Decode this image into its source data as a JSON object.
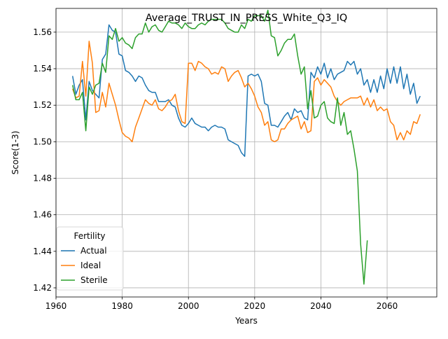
{
  "chart_data": {
    "type": "line",
    "title": "Average_TRUST_IN_PRESS_White_Q3_IQ",
    "xlabel": "Years",
    "ylabel": "Score(1-3)",
    "xlim": [
      1960,
      2075
    ],
    "ylim": [
      1.415,
      1.573
    ],
    "xticks": [
      1960,
      1980,
      2000,
      2020,
      2040,
      2060
    ],
    "yticks": [
      1.42,
      1.44,
      1.46,
      1.48,
      1.5,
      1.52,
      1.54,
      1.56
    ],
    "grid": true,
    "legend": {
      "title": "Fertility",
      "placement": "lower-left"
    },
    "series": [
      {
        "name": "Actual",
        "color": "#1f77b4",
        "x": [
          1965,
          1966,
          1967,
          1968,
          1969,
          1970,
          1971,
          1972,
          1973,
          1974,
          1975,
          1976,
          1977,
          1978,
          1979,
          1980,
          1981,
          1982,
          1983,
          1984,
          1985,
          1986,
          1987,
          1988,
          1989,
          1990,
          1991,
          1992,
          1993,
          1994,
          1995,
          1996,
          1997,
          1998,
          1999,
          2000,
          2001,
          2002,
          2003,
          2004,
          2005,
          2006,
          2007,
          2008,
          2009,
          2010,
          2011,
          2012,
          2013,
          2014,
          2015,
          2016,
          2017,
          2018,
          2019,
          2020,
          2021,
          2022,
          2023,
          2024,
          2025,
          2026,
          2027,
          2028,
          2029,
          2030,
          2031,
          2032,
          2033,
          2034,
          2035,
          2036,
          2037,
          2038,
          2039,
          2040,
          2041,
          2042,
          2043,
          2044,
          2045,
          2046,
          2047,
          2048,
          2049,
          2050,
          2051,
          2052,
          2053,
          2054,
          2055,
          2056,
          2057,
          2058,
          2059,
          2060,
          2061,
          2062,
          2063,
          2064,
          2065,
          2066,
          2067,
          2068,
          2069,
          2070
        ],
        "values": [
          1.536,
          1.526,
          1.531,
          1.534,
          1.512,
          1.533,
          1.528,
          1.526,
          1.524,
          1.545,
          1.548,
          1.564,
          1.561,
          1.56,
          1.548,
          1.547,
          1.539,
          1.538,
          1.536,
          1.533,
          1.536,
          1.535,
          1.531,
          1.528,
          1.527,
          1.527,
          1.522,
          1.522,
          1.522,
          1.523,
          1.52,
          1.519,
          1.513,
          1.509,
          1.508,
          1.51,
          1.513,
          1.51,
          1.509,
          1.508,
          1.508,
          1.506,
          1.508,
          1.509,
          1.508,
          1.508,
          1.507,
          1.501,
          1.5,
          1.499,
          1.498,
          1.494,
          1.492,
          1.536,
          1.537,
          1.536,
          1.537,
          1.533,
          1.521,
          1.52,
          1.509,
          1.509,
          1.508,
          1.511,
          1.514,
          1.516,
          1.512,
          1.518,
          1.516,
          1.517,
          1.513,
          1.512,
          1.538,
          1.535,
          1.541,
          1.537,
          1.543,
          1.535,
          1.54,
          1.534,
          1.537,
          1.538,
          1.539,
          1.544,
          1.542,
          1.544,
          1.537,
          1.54,
          1.531,
          1.534,
          1.527,
          1.534,
          1.527,
          1.536,
          1.529,
          1.54,
          1.532,
          1.541,
          1.532,
          1.541,
          1.529,
          1.537,
          1.526,
          1.532,
          1.521,
          1.525
        ]
      },
      {
        "name": "Ideal",
        "color": "#ff7f0e",
        "x": [
          1965,
          1966,
          1967,
          1968,
          1969,
          1970,
          1971,
          1972,
          1973,
          1974,
          1975,
          1976,
          1977,
          1978,
          1979,
          1980,
          1981,
          1982,
          1983,
          1984,
          1985,
          1986,
          1987,
          1988,
          1989,
          1990,
          1991,
          1992,
          1993,
          1994,
          1995,
          1996,
          1997,
          1998,
          1999,
          2000,
          2001,
          2002,
          2003,
          2004,
          2005,
          2006,
          2007,
          2008,
          2009,
          2010,
          2011,
          2012,
          2013,
          2014,
          2015,
          2016,
          2017,
          2018,
          2019,
          2020,
          2021,
          2022,
          2023,
          2024,
          2025,
          2026,
          2027,
          2028,
          2029,
          2030,
          2031,
          2032,
          2033,
          2034,
          2035,
          2036,
          2037,
          2038,
          2039,
          2040,
          2041,
          2042,
          2043,
          2044,
          2045,
          2046,
          2047,
          2048,
          2049,
          2050,
          2051,
          2052,
          2053,
          2054,
          2055,
          2056,
          2057,
          2058,
          2059,
          2060,
          2061,
          2062,
          2063,
          2064,
          2065,
          2066,
          2067,
          2068,
          2069,
          2070
        ],
        "values": [
          1.529,
          1.524,
          1.525,
          1.544,
          1.525,
          1.555,
          1.543,
          1.516,
          1.517,
          1.527,
          1.519,
          1.532,
          1.526,
          1.52,
          1.512,
          1.505,
          1.503,
          1.502,
          1.5,
          1.508,
          1.513,
          1.518,
          1.523,
          1.521,
          1.52,
          1.523,
          1.518,
          1.517,
          1.519,
          1.522,
          1.523,
          1.526,
          1.517,
          1.511,
          1.51,
          1.543,
          1.543,
          1.539,
          1.544,
          1.543,
          1.541,
          1.54,
          1.537,
          1.538,
          1.537,
          1.541,
          1.54,
          1.533,
          1.536,
          1.538,
          1.539,
          1.535,
          1.53,
          1.532,
          1.529,
          1.525,
          1.519,
          1.516,
          1.509,
          1.511,
          1.501,
          1.5,
          1.501,
          1.507,
          1.507,
          1.51,
          1.512,
          1.513,
          1.514,
          1.507,
          1.511,
          1.505,
          1.506,
          1.533,
          1.535,
          1.531,
          1.534,
          1.532,
          1.53,
          1.525,
          1.522,
          1.52,
          1.522,
          1.523,
          1.524,
          1.524,
          1.524,
          1.525,
          1.52,
          1.524,
          1.519,
          1.523,
          1.517,
          1.519,
          1.517,
          1.518,
          1.511,
          1.509,
          1.501,
          1.505,
          1.501,
          1.506,
          1.504,
          1.511,
          1.51,
          1.515
        ]
      },
      {
        "name": "Sterile",
        "color": "#2ca02c",
        "x": [
          1965,
          1966,
          1967,
          1968,
          1969,
          1970,
          1971,
          1972,
          1973,
          1974,
          1975,
          1976,
          1977,
          1978,
          1979,
          1980,
          1981,
          1982,
          1983,
          1984,
          1985,
          1986,
          1987,
          1988,
          1989,
          1990,
          1991,
          1992,
          1993,
          1994,
          1995,
          1996,
          1997,
          1998,
          1999,
          2000,
          2001,
          2002,
          2003,
          2004,
          2005,
          2006,
          2007,
          2008,
          2009,
          2010,
          2011,
          2012,
          2013,
          2014,
          2015,
          2016,
          2017,
          2018,
          2019,
          2020,
          2021,
          2022,
          2023,
          2024,
          2025,
          2026,
          2027,
          2028,
          2029,
          2030,
          2031,
          2032,
          2033,
          2034,
          2035,
          2036,
          2037,
          2038,
          2039,
          2040,
          2041,
          2042,
          2043,
          2044,
          2045,
          2046,
          2047,
          2048,
          2049,
          2050,
          2051,
          2052,
          2053,
          2054
        ],
        "values": [
          1.531,
          1.523,
          1.523,
          1.527,
          1.506,
          1.53,
          1.526,
          1.531,
          1.532,
          1.543,
          1.538,
          1.558,
          1.556,
          1.562,
          1.555,
          1.557,
          1.554,
          1.553,
          1.551,
          1.557,
          1.559,
          1.559,
          1.565,
          1.56,
          1.563,
          1.564,
          1.561,
          1.56,
          1.563,
          1.566,
          1.565,
          1.565,
          1.564,
          1.562,
          1.565,
          1.563,
          1.562,
          1.562,
          1.564,
          1.565,
          1.564,
          1.566,
          1.567,
          1.567,
          1.567,
          1.567,
          1.565,
          1.562,
          1.561,
          1.56,
          1.56,
          1.564,
          1.562,
          1.567,
          1.566,
          1.569,
          1.569,
          1.569,
          1.566,
          1.572,
          1.558,
          1.557,
          1.547,
          1.55,
          1.554,
          1.556,
          1.556,
          1.559,
          1.547,
          1.537,
          1.541,
          1.518,
          1.528,
          1.513,
          1.514,
          1.52,
          1.522,
          1.513,
          1.511,
          1.51,
          1.524,
          1.509,
          1.516,
          1.504,
          1.506,
          1.496,
          1.484,
          1.444,
          1.422,
          1.446
        ]
      }
    ]
  }
}
